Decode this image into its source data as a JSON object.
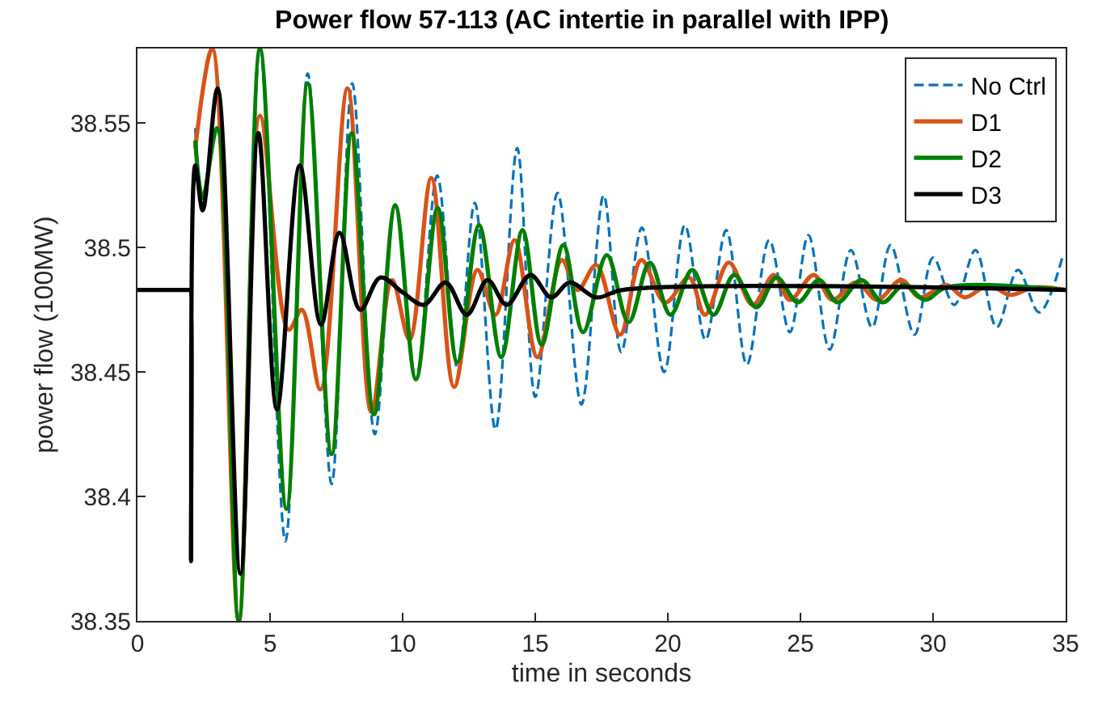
{
  "chart_data": {
    "type": "line",
    "title": "Power flow 57-113 (AC intertie in parallel with IPP)",
    "xlabel": "time in seconds",
    "ylabel": "power flow (100MW)",
    "xlim": [
      0,
      35
    ],
    "xticks": [
      0,
      5,
      10,
      15,
      20,
      25,
      30,
      35
    ],
    "ylim": [
      38.35,
      38.58
    ],
    "yticks": [
      38.35,
      38.4,
      38.45,
      38.5,
      38.55
    ],
    "grid": false,
    "legend": "top right",
    "marker": "none",
    "series": [
      {
        "name": "No Ctrl",
        "color": "#0072bd",
        "line_style": "dashed",
        "x": [
          2.18,
          2.46,
          3.0,
          3.82,
          4.62,
          5.58,
          6.42,
          7.32,
          8.1,
          8.95,
          9.72,
          10.5,
          11.3,
          12.06,
          12.72,
          13.5,
          14.32,
          15.0,
          15.84,
          16.74,
          17.58,
          18.24,
          19.02,
          19.86,
          20.64,
          21.42,
          22.2,
          22.98,
          23.82,
          24.6,
          25.3,
          26.1,
          26.9,
          27.7,
          28.4,
          29.3,
          30.0,
          30.8,
          31.6,
          32.4,
          33.2,
          34.0,
          34.9
        ],
        "values": [
          38.548,
          38.52,
          38.548,
          38.35,
          38.58,
          38.382,
          38.57,
          38.405,
          38.566,
          38.425,
          38.517,
          38.447,
          38.529,
          38.452,
          38.518,
          38.427,
          38.54,
          38.44,
          38.522,
          38.437,
          38.521,
          38.458,
          38.508,
          38.45,
          38.509,
          38.463,
          38.507,
          38.453,
          38.503,
          38.466,
          38.505,
          38.459,
          38.499,
          38.468,
          38.501,
          38.465,
          38.496,
          38.477,
          38.499,
          38.468,
          38.491,
          38.474,
          38.497
        ]
      },
      {
        "name": "D1",
        "color": "#d95319",
        "line_style": "solid",
        "x": [
          2.18,
          2.82,
          3.82,
          4.62,
          5.7,
          6.2,
          6.9,
          7.92,
          8.82,
          9.6,
          10.26,
          11.08,
          11.94,
          12.82,
          13.5,
          14.22,
          15.08,
          16.0,
          16.6,
          17.3,
          18.2,
          19.0,
          19.9,
          20.8,
          21.4,
          22.3,
          23.2,
          24.0,
          24.6,
          25.5,
          26.2,
          27.1,
          27.9,
          28.8,
          29.5,
          30.5,
          31.2,
          32.1,
          32.9,
          33.8,
          35
        ],
        "values": [
          38.54,
          38.58,
          38.35,
          38.553,
          38.467,
          38.475,
          38.443,
          38.564,
          38.434,
          38.487,
          38.463,
          38.528,
          38.444,
          38.491,
          38.473,
          38.503,
          38.456,
          38.495,
          38.483,
          38.493,
          38.465,
          38.495,
          38.478,
          38.488,
          38.473,
          38.494,
          38.477,
          38.489,
          38.479,
          38.489,
          38.479,
          38.486,
          38.479,
          38.487,
          38.48,
          38.485,
          38.48,
          38.485,
          38.481,
          38.484,
          38.483
        ]
      },
      {
        "name": "D2",
        "color": "#008000",
        "line_style": "solid",
        "x": [
          2.18,
          2.46,
          3.0,
          3.82,
          4.62,
          5.62,
          6.42,
          7.32,
          8.08,
          8.92,
          9.72,
          10.5,
          11.32,
          12.06,
          12.88,
          13.72,
          14.52,
          15.24,
          16.06,
          16.8,
          17.7,
          18.52,
          19.32,
          20.1,
          20.92,
          21.72,
          22.5,
          23.34,
          24.1,
          24.9,
          25.7,
          26.4,
          27.3,
          28.1,
          28.9,
          29.7,
          30.5,
          35
        ],
        "values": [
          38.543,
          38.52,
          38.548,
          38.35,
          38.58,
          38.395,
          38.566,
          38.417,
          38.546,
          38.433,
          38.517,
          38.447,
          38.516,
          38.454,
          38.509,
          38.456,
          38.507,
          38.461,
          38.501,
          38.466,
          38.497,
          38.47,
          38.494,
          38.473,
          38.491,
          38.473,
          38.489,
          38.476,
          38.488,
          38.478,
          38.487,
          38.478,
          38.487,
          38.478,
          38.485,
          38.479,
          38.484,
          38.483
        ]
      },
      {
        "name": "D3",
        "color": "#000000",
        "line_style": "solid",
        "x": [
          0,
          1.99,
          2,
          2.02,
          2.18,
          2.46,
          3.02,
          3.88,
          4.56,
          5.26,
          6.12,
          6.92,
          7.62,
          8.4,
          9.16,
          10.0,
          10.8,
          11.62,
          12.42,
          13.2,
          13.92,
          14.82,
          15.6,
          16.3,
          17.3,
          18.3,
          35
        ],
        "values": [
          38.483,
          38.483,
          38.483,
          38.374,
          38.533,
          38.515,
          38.564,
          38.369,
          38.546,
          38.435,
          38.533,
          38.469,
          38.506,
          38.475,
          38.488,
          38.482,
          38.477,
          38.486,
          38.473,
          38.487,
          38.477,
          38.489,
          38.48,
          38.486,
          38.48,
          38.483,
          38.483
        ]
      }
    ]
  }
}
